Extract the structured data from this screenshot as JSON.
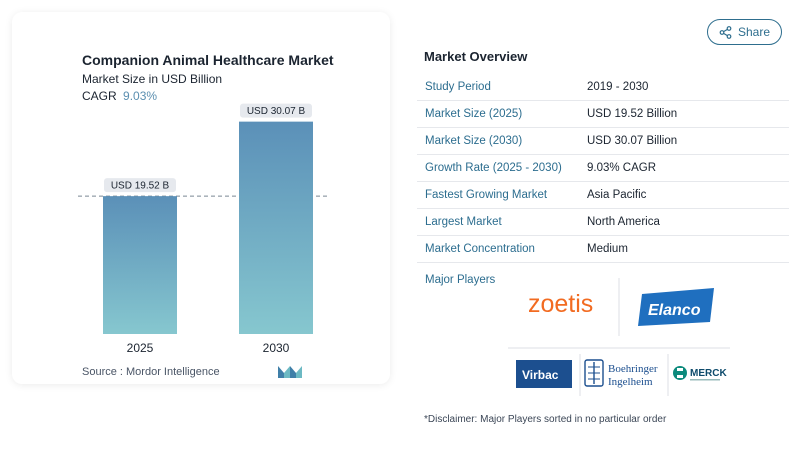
{
  "chart_data": {
    "type": "bar",
    "title": "Companion Animal Healthcare Market",
    "subtitle": "Market Size in USD Billion",
    "cagr_label": "CAGR",
    "cagr_value": "9.03%",
    "categories": [
      "2025",
      "2030"
    ],
    "values": [
      19.52,
      30.07
    ],
    "data_labels": [
      "USD 19.52 B",
      "USD 30.07 B"
    ],
    "ylim": [
      0,
      32
    ],
    "reference_line_value": 19.52,
    "bar_color_top": "#5b90b8",
    "bar_color_bottom": "#86c7cf"
  },
  "source": "Source :  Mordor Intelligence",
  "share": {
    "label": "Share",
    "icon": "share-icon"
  },
  "overview": {
    "title": "Market Overview",
    "rows": [
      {
        "label": "Study Period",
        "value": "2019 - 2030"
      },
      {
        "label": "Market Size (2025)",
        "value": "USD 19.52 Billion"
      },
      {
        "label": "Market Size (2030)",
        "value": "USD 30.07 Billion"
      },
      {
        "label": "Growth Rate (2025 - 2030)",
        "value": "9.03% CAGR"
      },
      {
        "label": "Fastest Growing Market",
        "value": "Asia Pacific"
      },
      {
        "label": "Largest Market",
        "value": "North America"
      },
      {
        "label": "Market Concentration",
        "value": "Medium"
      }
    ],
    "players_label": "Major Players",
    "players": [
      "zoetis",
      "Elanco",
      "Virbac",
      "Boehringer Ingelheim",
      "MERCK"
    ],
    "disclaimer": "*Disclaimer: Major Players sorted in no particular order"
  },
  "colors": {
    "accent": "#2c6d8f",
    "cagr": "#5b8fb0"
  }
}
